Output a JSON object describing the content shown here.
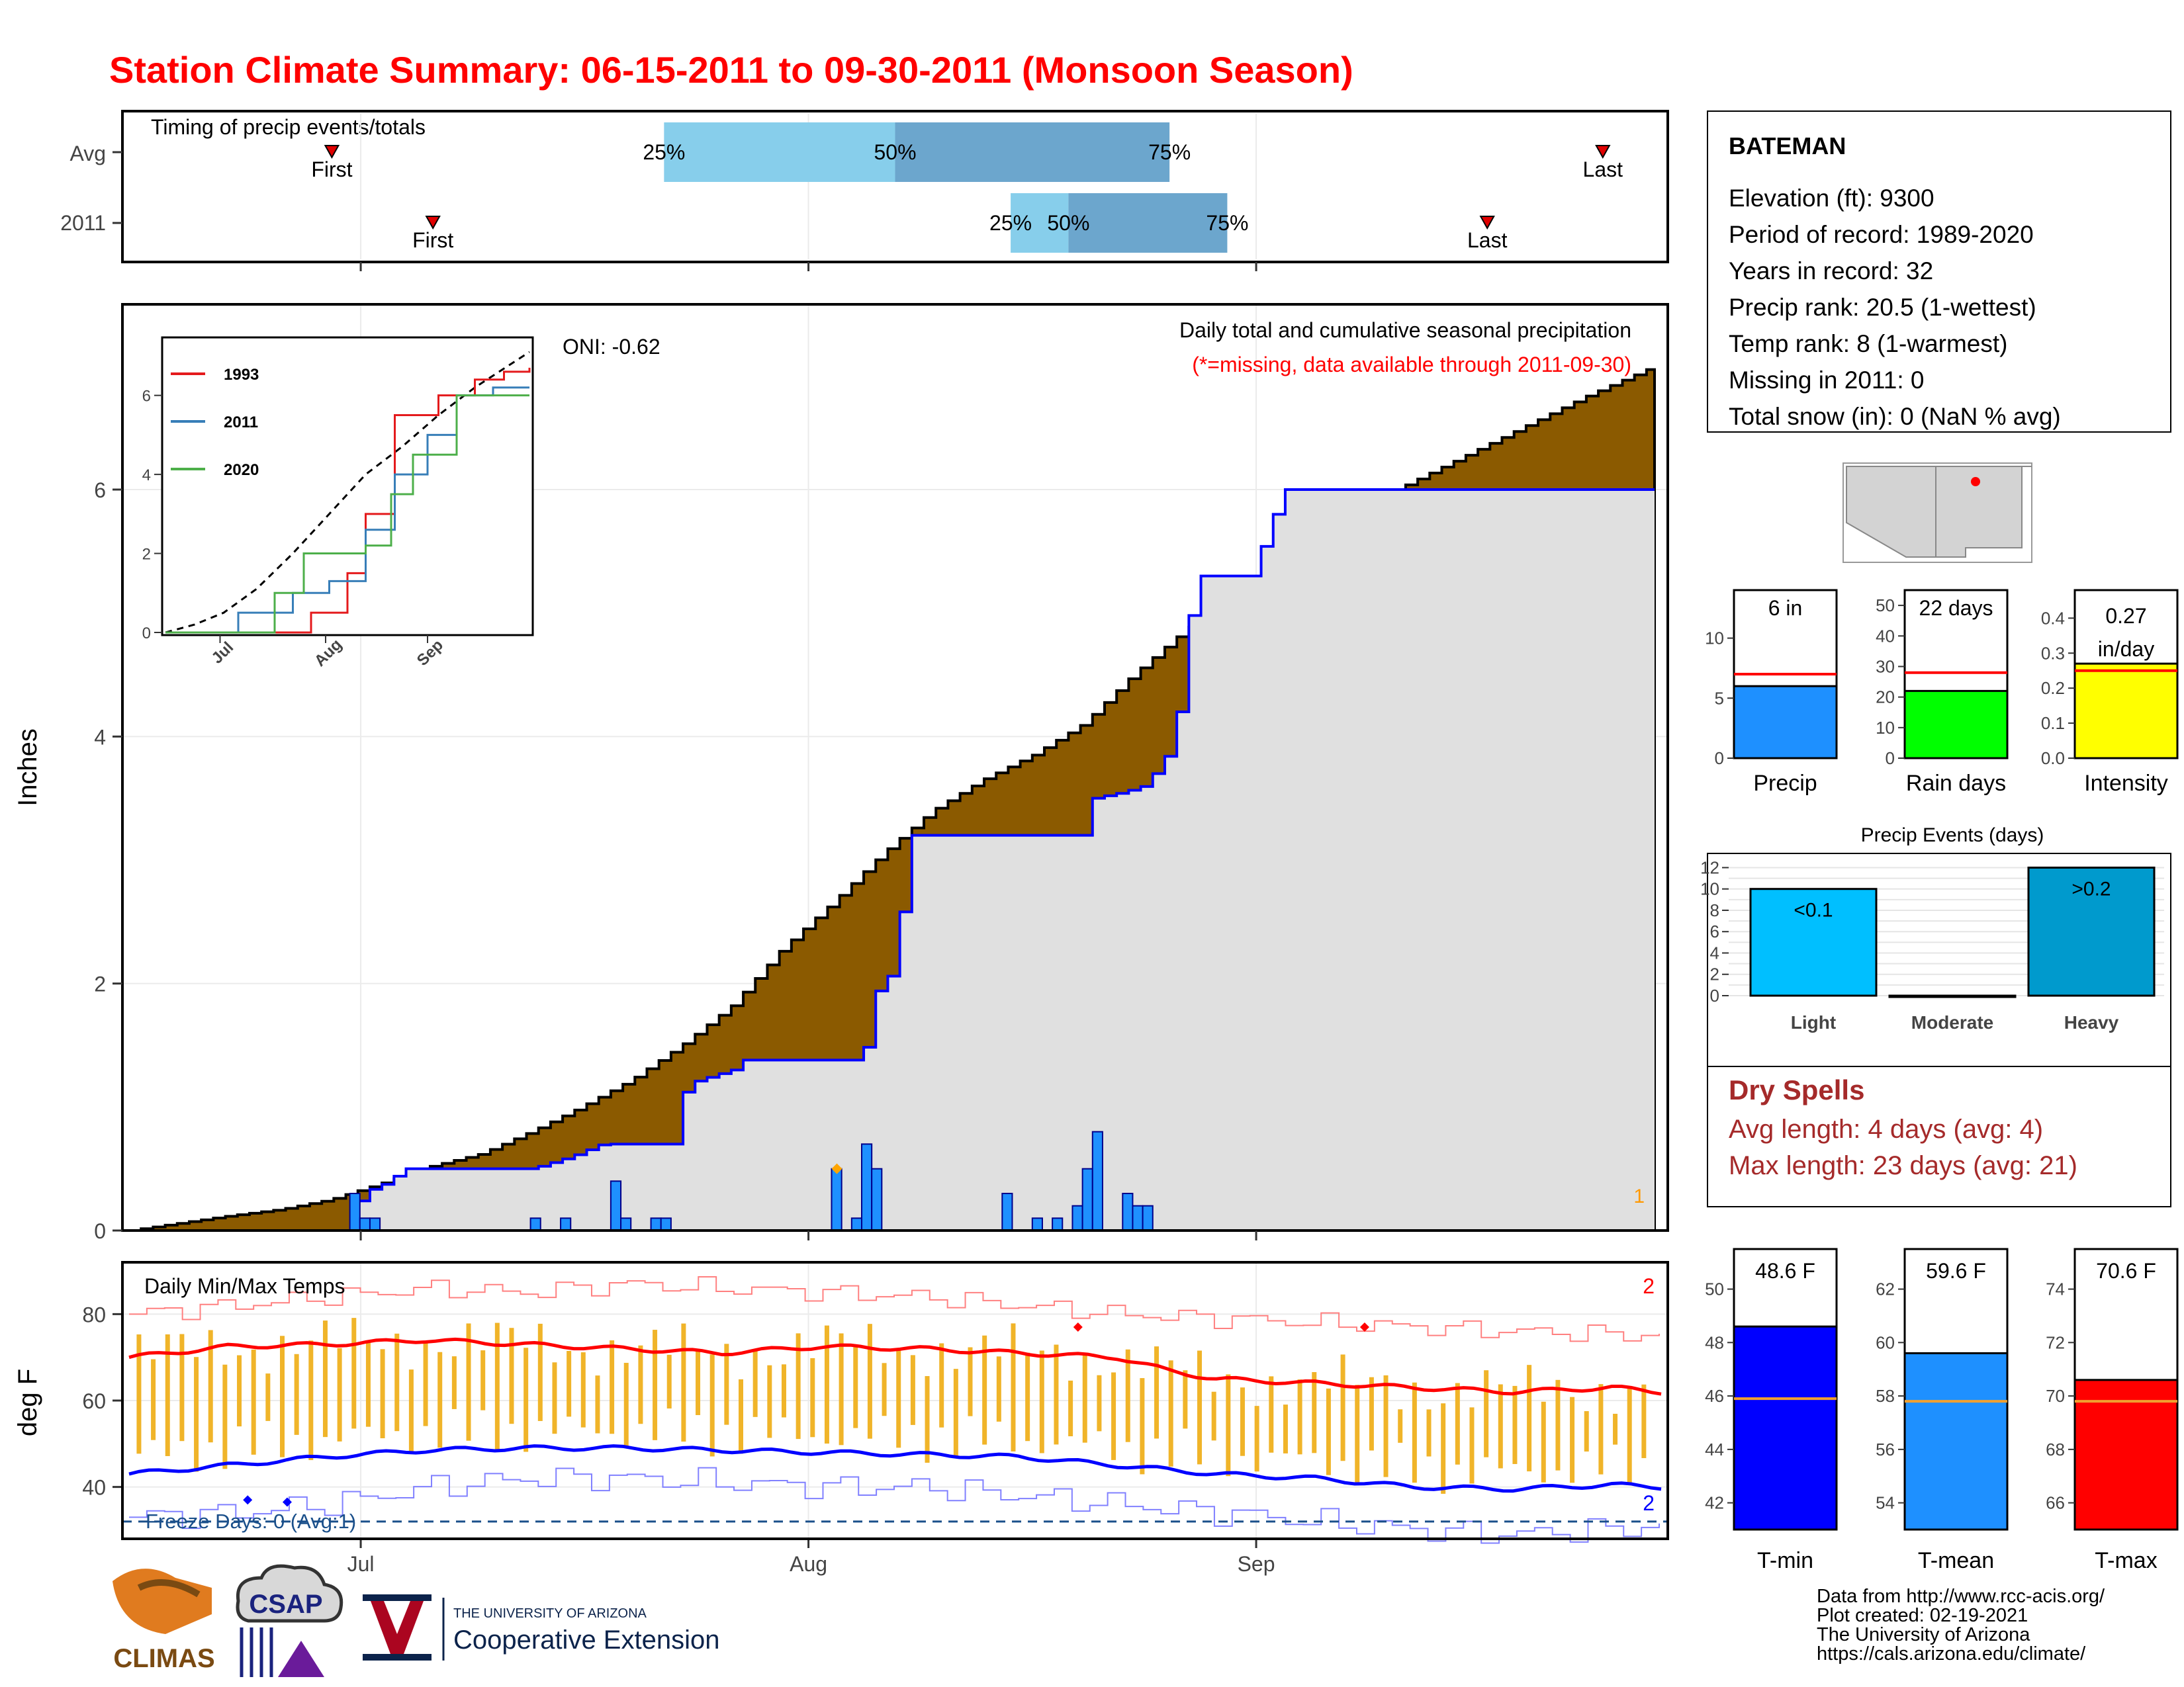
{
  "title": "Station Climate Summary: 06-15-2011 to 09-30-2011 (Monsoon Season)",
  "colors": {
    "title": "#ff0000",
    "cum_avg_fill": "#8b5a00",
    "cum_obs_fill": "#e0e0e0",
    "obs_line": "#0000ff",
    "daily_bar": "#1e90ff",
    "timing_light": "#87ceeb",
    "timing_dark": "#6ca6cd",
    "tmax_line": "#ff0000",
    "tmin_line": "#0000ff",
    "temp_bar": "#f0b429",
    "dry_spell_text": "#a52a2a",
    "precip_bar": "#1e90ff",
    "raindays_bar": "#00ff00",
    "intensity_bar": "#ffff00",
    "light_bar": "#00bfff",
    "heavy_bar": "#009acd",
    "tmin_bar": "#0000ff",
    "tmean_bar": "#1e90ff",
    "tmax_bar": "#ff0000",
    "avg_line": "#f0a030"
  },
  "timing": {
    "title": "Timing of precip events/totals",
    "rows": [
      {
        "label": "Avg",
        "first": "2011-06-29",
        "last": "2011-09-25",
        "p25": "2011-07-22",
        "p50": "2011-08-07",
        "p75": "2011-08-26",
        "first_label": "First",
        "last_label": "Last",
        "p25_label": "25%",
        "p50_label": "50%",
        "p75_label": "75%"
      },
      {
        "label": "2011",
        "first": "2011-07-06",
        "last": "2011-09-17",
        "p25": "2011-08-15",
        "p50": "2011-08-19",
        "p75": "2011-08-30",
        "first_label": "First",
        "last_label": "Last",
        "p25_label": "25%",
        "p50_label": "50%",
        "p75_label": "75%"
      }
    ]
  },
  "main": {
    "ylabel": "Inches",
    "annotation_title": "Daily total and cumulative seasonal precipitation",
    "annotation_missing": "(*=missing, data available through 2011-09-30)",
    "oni": "ONI: -0.62",
    "corner_count": "1"
  },
  "inset": {
    "legend": [
      "1993",
      "2011",
      "2020"
    ],
    "series_colors": [
      "#e41a1c",
      "#377eb8",
      "#4daf4a"
    ]
  },
  "temps": {
    "title": "Daily Min/Max Temps",
    "ylabel": "deg F",
    "freeze_text": "Freeze Days: 0 (Avg:1)",
    "count_max": "2",
    "count_min": "2"
  },
  "station": {
    "name": "BATEMAN",
    "lines": [
      "Elevation (ft): 9300",
      "Period of record: 1989-2020",
      "Years in record: 32",
      "Precip rank: 20.5 (1-wettest)",
      "Temp rank: 8 (1-warmest)",
      "Missing in 2011: 0",
      "Total snow (in): 0 (NaN % avg)"
    ]
  },
  "mini_bars": [
    {
      "label": "Precip",
      "value": 6.0,
      "avg": 7.0,
      "text": "6 in",
      "ticks": [
        0,
        5,
        10
      ],
      "ylim": [
        0,
        14
      ]
    },
    {
      "label": "Rain days",
      "value": 22,
      "avg": 28,
      "text": "22 days",
      "ticks": [
        0,
        10,
        20,
        30,
        40,
        50
      ],
      "ylim": [
        0,
        55
      ]
    },
    {
      "label": "Intensity",
      "value": 0.27,
      "avg": 0.25,
      "text": "0.27 in/day",
      "ticks": [
        "0.0",
        "0.1",
        "0.2",
        "0.3",
        "0.4"
      ],
      "ylim": [
        0,
        0.48
      ]
    }
  ],
  "events": {
    "title": "Precip Events (days)",
    "categories": [
      "Light",
      "Moderate",
      "Heavy"
    ],
    "values": [
      10,
      0,
      12
    ],
    "labels": [
      "<0.1",
      "",
      ">0.2"
    ],
    "ticks": [
      0,
      2,
      4,
      6,
      8,
      10,
      12
    ]
  },
  "dry_spells": {
    "title": "Dry Spells",
    "avg": "Avg length: 4 days (avg: 4)",
    "max": "Max length: 23 days (avg: 21)"
  },
  "temp_bars": [
    {
      "label": "T-min",
      "value": 48.6,
      "avg": 45.9,
      "text": "48.6 F",
      "ticks": [
        42,
        44,
        46,
        48,
        50
      ],
      "ylim": [
        41,
        51.5
      ]
    },
    {
      "label": "T-mean",
      "value": 59.6,
      "avg": 57.8,
      "text": "59.6 F",
      "ticks": [
        54,
        56,
        58,
        60,
        62
      ],
      "ylim": [
        53,
        63.5
      ]
    },
    {
      "label": "T-max",
      "value": 70.6,
      "avg": 69.8,
      "text": "70.6 F",
      "ticks": [
        66,
        68,
        70,
        72,
        74
      ],
      "ylim": [
        65,
        75.5
      ]
    }
  ],
  "credits": [
    "Data from http://www.rcc-acis.org/",
    "Plot created: 02-19-2021",
    "The University of Arizona",
    "https://cals.arizona.edu/climate/"
  ],
  "logos": {
    "climas": "CLIMAS",
    "csap": "CSAP",
    "ua_small": "THE UNIVERSITY OF ARIZONA",
    "ua_big": "Cooperative Extension"
  },
  "chart_data": [
    {
      "type": "area",
      "title": "Daily total and cumulative seasonal precipitation",
      "ylabel": "Inches",
      "x_range": [
        "2011-06-15",
        "2011-09-30"
      ],
      "x_ticks": [
        "Jul",
        "Aug",
        "Sep"
      ],
      "ylim": [
        0,
        7.5
      ],
      "y_ticks": [
        0,
        2,
        4,
        6
      ],
      "series": [
        {
          "name": "avg_cumulative",
          "points": [
            [
              0,
              0
            ],
            [
              5,
              0.06
            ],
            [
              10,
              0.12
            ],
            [
              15,
              0.17
            ],
            [
              20,
              0.25
            ],
            [
              25,
              0.38
            ],
            [
              30,
              0.52
            ],
            [
              35,
              0.62
            ],
            [
              40,
              0.8
            ],
            [
              45,
              1.0
            ],
            [
              50,
              1.22
            ],
            [
              55,
              1.5
            ],
            [
              60,
              1.82
            ],
            [
              65,
              2.28
            ],
            [
              70,
              2.65
            ],
            [
              75,
              3.05
            ],
            [
              80,
              3.4
            ],
            [
              85,
              3.65
            ],
            [
              90,
              3.85
            ],
            [
              95,
              4.1
            ],
            [
              100,
              4.5
            ],
            [
              105,
              4.85
            ],
            [
              110,
              5.15
            ],
            [
              115,
              5.4
            ],
            [
              120,
              5.75
            ],
            [
              125,
              5.95
            ],
            [
              130,
              6.15
            ],
            [
              135,
              6.35
            ],
            [
              140,
              6.55
            ],
            [
              145,
              6.75
            ],
            [
              152,
              7.0
            ]
          ]
        },
        {
          "name": "obs_cumulative",
          "points": [
            [
              0,
              0
            ],
            [
              22,
              0
            ],
            [
              23,
              0.3
            ],
            [
              26,
              0.4
            ],
            [
              27,
              0.5
            ],
            [
              40,
              0.5
            ],
            [
              44,
              0.6
            ],
            [
              47,
              0.7
            ],
            [
              54,
              0.7
            ],
            [
              55,
              1.1
            ],
            [
              56,
              1.2
            ],
            [
              60,
              1.3
            ],
            [
              60.5,
              1.38
            ],
            [
              73,
              1.38
            ],
            [
              74,
              1.9
            ],
            [
              76,
              2.1
            ],
            [
              77,
              2.7
            ],
            [
              78,
              3.2
            ],
            [
              95,
              3.2
            ],
            [
              96,
              3.5
            ],
            [
              99,
              3.55
            ],
            [
              101,
              3.6
            ],
            [
              103,
              3.8
            ],
            [
              104,
              4.0
            ],
            [
              105,
              4.5
            ],
            [
              106,
              5.3
            ],
            [
              112,
              5.3
            ],
            [
              113,
              5.6
            ],
            [
              114,
              5.8
            ],
            [
              115,
              6.0
            ],
            [
              152,
              6.0
            ]
          ]
        },
        {
          "name": "daily",
          "points": [
            [
              22,
              0.3
            ],
            [
              23,
              0.1
            ],
            [
              24,
              0.1
            ],
            [
              40,
              0.1
            ],
            [
              43,
              0.1
            ],
            [
              48,
              0.4
            ],
            [
              49,
              0.1
            ],
            [
              52,
              0.1
            ],
            [
              53,
              0.1
            ],
            [
              70,
              0.5
            ],
            [
              72,
              0.1
            ],
            [
              73,
              0.7
            ],
            [
              74,
              0.5
            ],
            [
              87,
              0.3
            ],
            [
              90,
              0.1
            ],
            [
              92,
              0.1
            ],
            [
              94,
              0.2
            ],
            [
              95,
              0.5
            ],
            [
              96,
              0.8
            ],
            [
              99,
              0.3
            ],
            [
              100,
              0.2
            ],
            [
              101,
              0.2
            ]
          ]
        }
      ]
    },
    {
      "type": "line",
      "title": "Daily Min/Max Temps",
      "ylabel": "deg F",
      "ylim": [
        28,
        92
      ],
      "y_ticks": [
        40,
        60,
        80
      ],
      "series": [
        {
          "name": "avg_max",
          "points": [
            [
              0,
              70
            ],
            [
              10,
              72.5
            ],
            [
              20,
              73
            ],
            [
              30,
              74
            ],
            [
              40,
              73
            ],
            [
              50,
              72
            ],
            [
              60,
              71
            ],
            [
              70,
              72.5
            ],
            [
              80,
              72
            ],
            [
              90,
              71
            ],
            [
              100,
              70
            ],
            [
              105,
              67
            ],
            [
              110,
              65
            ],
            [
              120,
              64
            ],
            [
              130,
              63
            ],
            [
              140,
              62
            ],
            [
              150,
              63
            ],
            [
              155,
              62
            ]
          ]
        },
        {
          "name": "avg_min",
          "points": [
            [
              0,
              43
            ],
            [
              10,
              45
            ],
            [
              20,
              47
            ],
            [
              30,
              48.5
            ],
            [
              40,
              49
            ],
            [
              50,
              49
            ],
            [
              60,
              48.5
            ],
            [
              70,
              48
            ],
            [
              80,
              47.5
            ],
            [
              90,
              47
            ],
            [
              100,
              45
            ],
            [
              110,
              43
            ],
            [
              120,
              42
            ],
            [
              130,
              40
            ],
            [
              140,
              39.5
            ],
            [
              150,
              40.5
            ],
            [
              155,
              40
            ]
          ]
        },
        {
          "name": "record_max",
          "points": [
            [
              0,
              80
            ],
            [
              10,
              82
            ],
            [
              20,
              84
            ],
            [
              30,
              86
            ],
            [
              40,
              85
            ],
            [
              50,
              87
            ],
            [
              60,
              86
            ],
            [
              70,
              85
            ],
            [
              80,
              84
            ],
            [
              90,
              82
            ],
            [
              100,
              80
            ],
            [
              110,
              79
            ],
            [
              120,
              78
            ],
            [
              130,
              77
            ],
            [
              140,
              76
            ],
            [
              155,
              75
            ]
          ]
        },
        {
          "name": "record_min",
          "points": [
            [
              0,
              33
            ],
            [
              10,
              34
            ],
            [
              20,
              36
            ],
            [
              30,
              40
            ],
            [
              40,
              42
            ],
            [
              50,
              42
            ],
            [
              60,
              41
            ],
            [
              70,
              40
            ],
            [
              80,
              40
            ],
            [
              90,
              38
            ],
            [
              100,
              36
            ],
            [
              110,
              34
            ],
            [
              120,
              32
            ],
            [
              130,
              30
            ],
            [
              140,
              29
            ],
            [
              155,
              31
            ]
          ]
        }
      ],
      "freeze_line": 32
    }
  ]
}
